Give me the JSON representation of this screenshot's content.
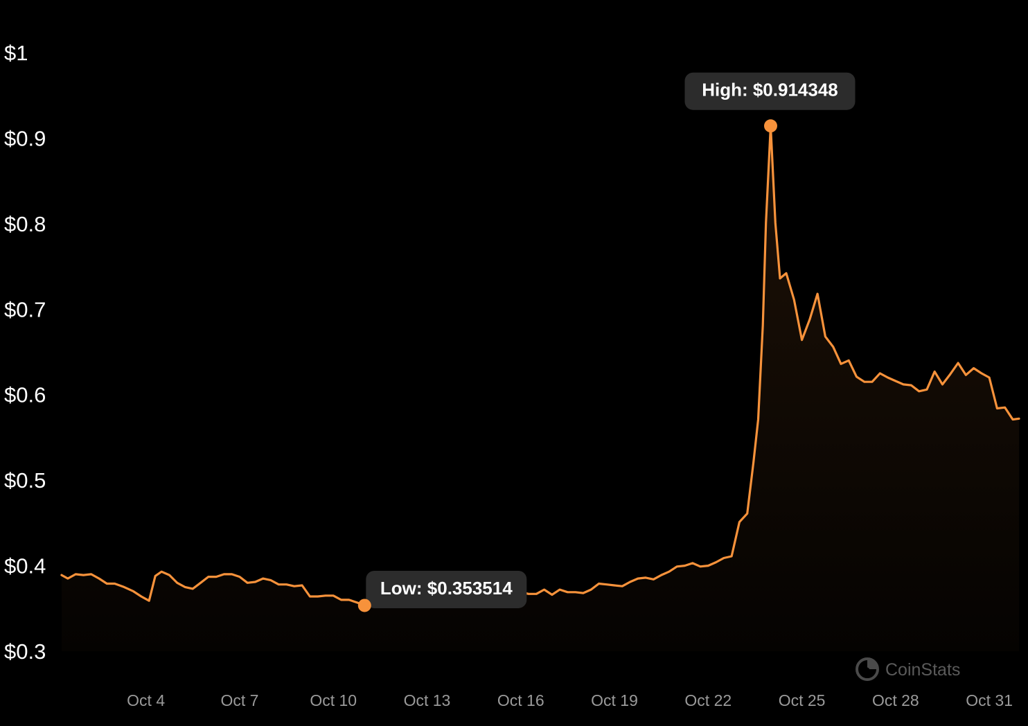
{
  "chart_data": {
    "type": "area",
    "title": "",
    "xlabel": "",
    "ylabel": "",
    "ylim": [
      0.3,
      1.0
    ],
    "y_ticks": [
      {
        "value": 1.0,
        "label": "$1"
      },
      {
        "value": 0.9,
        "label": "$0.9"
      },
      {
        "value": 0.8,
        "label": "$0.8"
      },
      {
        "value": 0.7,
        "label": "$0.7"
      },
      {
        "value": 0.6,
        "label": "$0.6"
      },
      {
        "value": 0.5,
        "label": "$0.5"
      },
      {
        "value": 0.4,
        "label": "$0.4"
      },
      {
        "value": 0.3,
        "label": "$0.3"
      }
    ],
    "x_range": [
      1.28,
      32.15
    ],
    "x_ticks": [
      {
        "value": 4,
        "label": "Oct 4"
      },
      {
        "value": 7,
        "label": "Oct 7"
      },
      {
        "value": 10,
        "label": "Oct 10"
      },
      {
        "value": 13,
        "label": "Oct 13"
      },
      {
        "value": 16,
        "label": "Oct 16"
      },
      {
        "value": 19,
        "label": "Oct 19"
      },
      {
        "value": 22,
        "label": "Oct 22"
      },
      {
        "value": 25,
        "label": "Oct 25"
      },
      {
        "value": 28,
        "label": "Oct 28"
      },
      {
        "value": 31,
        "label": "Oct 31"
      }
    ],
    "grid": false,
    "line_color": "#F7923B",
    "x_unit": "day of October",
    "series": [
      {
        "values": [
          [
            1.3,
            0.389
          ],
          [
            1.5,
            0.385
          ],
          [
            1.75,
            0.39
          ],
          [
            2.0,
            0.389
          ],
          [
            2.25,
            0.39
          ],
          [
            2.5,
            0.385
          ],
          [
            2.75,
            0.379
          ],
          [
            3.0,
            0.379
          ],
          [
            3.3,
            0.375
          ],
          [
            3.6,
            0.37
          ],
          [
            3.85,
            0.364
          ],
          [
            4.1,
            0.359
          ],
          [
            4.3,
            0.388
          ],
          [
            4.5,
            0.393
          ],
          [
            4.75,
            0.389
          ],
          [
            5.0,
            0.38
          ],
          [
            5.25,
            0.375
          ],
          [
            5.5,
            0.373
          ],
          [
            5.75,
            0.38
          ],
          [
            6.0,
            0.387
          ],
          [
            6.25,
            0.387
          ],
          [
            6.5,
            0.39
          ],
          [
            6.75,
            0.39
          ],
          [
            7.0,
            0.387
          ],
          [
            7.25,
            0.38
          ],
          [
            7.5,
            0.381
          ],
          [
            7.75,
            0.385
          ],
          [
            8.0,
            0.383
          ],
          [
            8.25,
            0.378
          ],
          [
            8.5,
            0.378
          ],
          [
            8.75,
            0.376
          ],
          [
            9.0,
            0.377
          ],
          [
            9.25,
            0.364
          ],
          [
            9.5,
            0.364
          ],
          [
            9.75,
            0.365
          ],
          [
            10.0,
            0.365
          ],
          [
            10.25,
            0.36
          ],
          [
            10.5,
            0.36
          ],
          [
            10.75,
            0.357
          ],
          [
            11.0,
            0.353514
          ],
          [
            11.25,
            0.354
          ],
          [
            11.5,
            0.356
          ],
          [
            11.75,
            0.358
          ],
          [
            12.0,
            0.359
          ],
          [
            12.25,
            0.36
          ],
          [
            12.5,
            0.361
          ],
          [
            12.75,
            0.362
          ],
          [
            13.0,
            0.364
          ],
          [
            13.25,
            0.365
          ],
          [
            13.5,
            0.366
          ],
          [
            13.75,
            0.367
          ],
          [
            14.0,
            0.368
          ],
          [
            14.25,
            0.369
          ],
          [
            14.5,
            0.37
          ],
          [
            14.75,
            0.371
          ],
          [
            15.0,
            0.371
          ],
          [
            15.25,
            0.37
          ],
          [
            15.5,
            0.372
          ],
          [
            15.75,
            0.367
          ],
          [
            16.0,
            0.369
          ],
          [
            16.25,
            0.367
          ],
          [
            16.5,
            0.367
          ],
          [
            16.75,
            0.372
          ],
          [
            17.0,
            0.366
          ],
          [
            17.25,
            0.372
          ],
          [
            17.5,
            0.369
          ],
          [
            17.75,
            0.369
          ],
          [
            18.0,
            0.368
          ],
          [
            18.25,
            0.372
          ],
          [
            18.5,
            0.379
          ],
          [
            18.75,
            0.378
          ],
          [
            19.0,
            0.377
          ],
          [
            19.25,
            0.376
          ],
          [
            19.5,
            0.381
          ],
          [
            19.75,
            0.385
          ],
          [
            20.0,
            0.386
          ],
          [
            20.25,
            0.384
          ],
          [
            20.5,
            0.389
          ],
          [
            20.75,
            0.393
          ],
          [
            21.0,
            0.399
          ],
          [
            21.25,
            0.4
          ],
          [
            21.5,
            0.403
          ],
          [
            21.75,
            0.399
          ],
          [
            22.0,
            0.4
          ],
          [
            22.25,
            0.404
          ],
          [
            22.5,
            0.409
          ],
          [
            22.75,
            0.411
          ],
          [
            23.0,
            0.451
          ],
          [
            23.25,
            0.461
          ],
          [
            23.45,
            0.521
          ],
          [
            23.6,
            0.571
          ],
          [
            23.75,
            0.681
          ],
          [
            23.85,
            0.801
          ],
          [
            24.0,
            0.914348
          ],
          [
            24.15,
            0.801
          ],
          [
            24.3,
            0.736
          ],
          [
            24.5,
            0.742
          ],
          [
            24.75,
            0.711
          ],
          [
            25.0,
            0.664
          ],
          [
            25.25,
            0.688
          ],
          [
            25.5,
            0.718
          ],
          [
            25.75,
            0.668
          ],
          [
            26.0,
            0.656
          ],
          [
            26.25,
            0.636
          ],
          [
            26.5,
            0.64
          ],
          [
            26.75,
            0.621
          ],
          [
            27.0,
            0.615
          ],
          [
            27.25,
            0.615
          ],
          [
            27.5,
            0.625
          ],
          [
            27.75,
            0.62
          ],
          [
            28.0,
            0.616
          ],
          [
            28.25,
            0.612
          ],
          [
            28.5,
            0.611
          ],
          [
            28.75,
            0.604
          ],
          [
            29.0,
            0.606
          ],
          [
            29.25,
            0.627
          ],
          [
            29.5,
            0.612
          ],
          [
            29.75,
            0.624
          ],
          [
            30.0,
            0.637
          ],
          [
            30.25,
            0.623
          ],
          [
            30.5,
            0.631
          ],
          [
            30.75,
            0.625
          ],
          [
            31.0,
            0.62
          ],
          [
            31.25,
            0.584
          ],
          [
            31.5,
            0.585
          ],
          [
            31.75,
            0.571
          ],
          [
            31.95,
            0.572
          ]
        ]
      }
    ],
    "annotations": [
      {
        "kind": "high",
        "x": 24.0,
        "y": 0.914348,
        "label": "High: $0.914348",
        "placement": "above"
      },
      {
        "kind": "low",
        "x": 11.0,
        "y": 0.353514,
        "label": "Low: $0.353514",
        "placement": "right"
      }
    ]
  },
  "watermark": {
    "text": "CoinStats",
    "icon": "coinstats-logo-icon"
  }
}
